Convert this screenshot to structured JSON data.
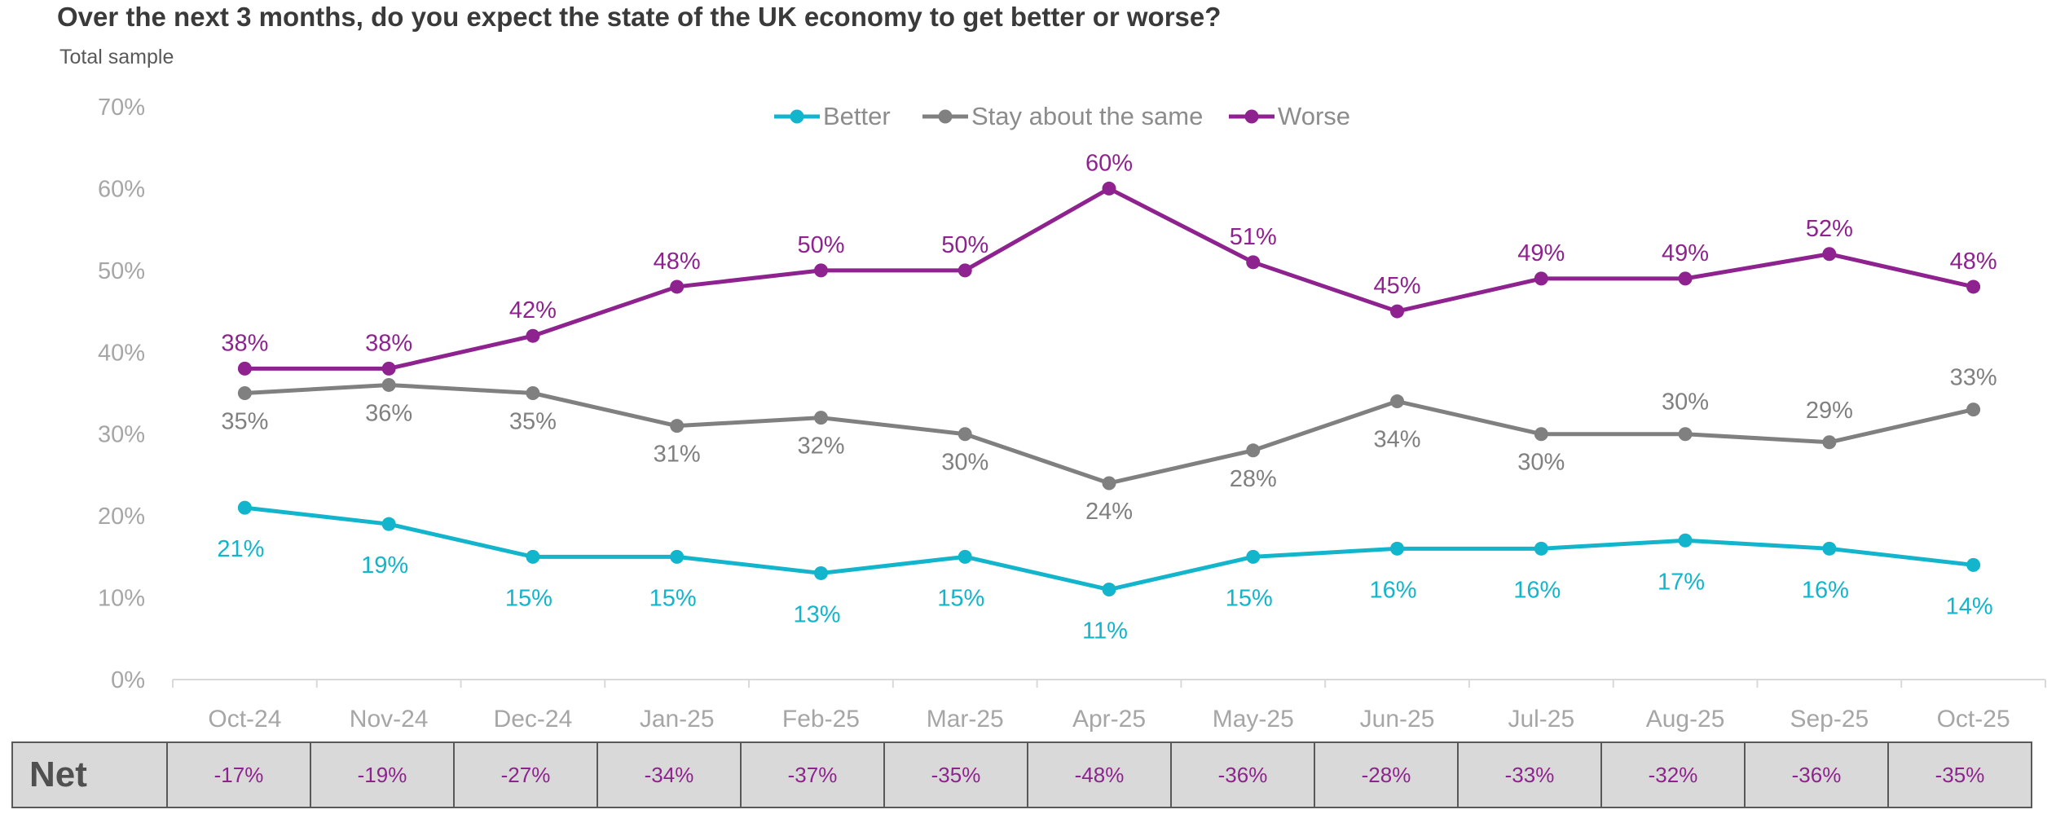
{
  "header": {
    "title": "Over the next 3 months, do you expect the state of the UK economy to get better or worse?",
    "subtitle": "Total sample"
  },
  "colors": {
    "better": "#12b5cb",
    "same": "#808080",
    "worse": "#8e238f",
    "axis_text": "#a6a6a6",
    "table_bg": "#d9d9d9"
  },
  "chart_data": {
    "type": "line",
    "title": "Over the next 3 months, do you expect the state of the UK economy to get better or worse?",
    "subtitle": "Total sample",
    "categories": [
      "Oct-24",
      "Nov-24",
      "Dec-24",
      "Jan-25",
      "Feb-25",
      "Mar-25",
      "Apr-25",
      "May-25",
      "Jun-25",
      "Jul-25",
      "Aug-25",
      "Sep-25",
      "Oct-25"
    ],
    "series": [
      {
        "name": "Better",
        "color": "#12b5cb",
        "values": [
          21,
          19,
          15,
          15,
          13,
          15,
          11,
          15,
          16,
          16,
          17,
          16,
          14
        ],
        "labels": [
          "21%",
          "19%",
          "15%",
          "15%",
          "13%",
          "15%",
          "11%",
          "15%",
          "16%",
          "16%",
          "17%",
          "16%",
          "14%"
        ]
      },
      {
        "name": "Stay about the same",
        "color": "#808080",
        "values": [
          35,
          36,
          35,
          31,
          32,
          30,
          24,
          28,
          34,
          30,
          30,
          29,
          33
        ],
        "labels": [
          "35%",
          "36%",
          "35%",
          "31%",
          "32%",
          "30%",
          "24%",
          "28%",
          "34%",
          "30%",
          "30%",
          "29%",
          "33%"
        ]
      },
      {
        "name": "Worse",
        "color": "#8e238f",
        "values": [
          38,
          38,
          42,
          48,
          50,
          50,
          60,
          51,
          45,
          49,
          49,
          52,
          48
        ],
        "labels": [
          "38%",
          "38%",
          "42%",
          "48%",
          "50%",
          "50%",
          "60%",
          "51%",
          "45%",
          "49%",
          "49%",
          "52%",
          "48%"
        ]
      }
    ],
    "ylim": [
      0,
      70
    ],
    "yticks": [
      "0%",
      "10%",
      "20%",
      "30%",
      "40%",
      "50%",
      "60%",
      "70%"
    ],
    "xlabel": "",
    "ylabel": "",
    "grid": false,
    "legend_position": "top-center"
  },
  "net": {
    "label": "Net",
    "values": [
      "-17%",
      "-19%",
      "-27%",
      "-34%",
      "-37%",
      "-35%",
      "-48%",
      "-36%",
      "-28%",
      "-33%",
      "-32%",
      "-36%",
      "-35%"
    ]
  }
}
